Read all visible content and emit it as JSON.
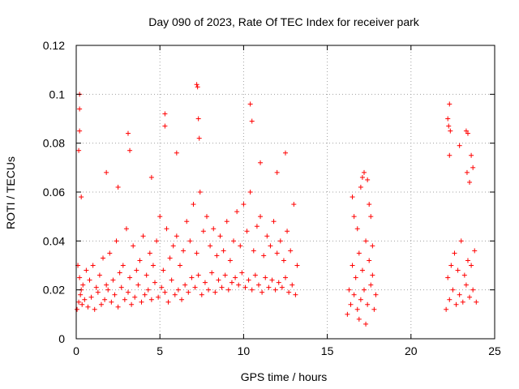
{
  "chart_data": {
    "type": "scatter",
    "title": "Day 090 of 2023, Rate Of TEC Index for receiver park",
    "xlabel": "GPS time / hours",
    "ylabel": "ROTI / TECUs",
    "xlim": [
      0,
      25
    ],
    "ylim": [
      0,
      0.12
    ],
    "xticks": [
      0,
      5,
      10,
      15,
      20,
      25
    ],
    "xtick_labels": [
      "0",
      "5",
      "10",
      "15",
      "20",
      "25"
    ],
    "yticks": [
      0,
      0.02,
      0.04,
      0.06,
      0.08,
      0.1,
      0.12
    ],
    "ytick_labels": [
      "0",
      "0.02",
      "0.04",
      "0.06",
      "0.08",
      "0.1",
      "0.12"
    ],
    "grid": true,
    "marker": "plus",
    "color": "#ff0000",
    "series": [
      {
        "x": [
          0.05,
          0.1,
          0.15,
          0.2,
          0.25,
          0.3,
          0.35,
          0.4,
          0.5,
          0.6,
          0.7,
          0.8,
          0.9,
          1.0,
          1.1,
          1.2,
          1.3,
          1.4,
          1.5,
          1.6,
          1.7,
          1.8,
          1.9,
          2.0,
          2.1,
          2.2,
          2.3,
          2.4,
          2.5,
          2.6,
          2.7,
          2.8,
          2.9,
          3.0,
          3.1,
          3.2,
          3.3,
          3.4,
          3.5,
          3.6,
          3.7,
          3.8,
          3.9,
          4.0,
          4.1,
          4.2,
          4.3,
          4.4,
          4.5,
          4.6,
          4.7,
          4.8,
          4.9,
          5.0,
          5.1,
          5.2,
          5.3,
          5.4,
          5.5,
          5.6,
          5.7,
          5.8,
          5.9,
          6.0,
          6.1,
          6.2,
          6.3,
          6.4,
          6.5,
          6.6,
          6.7,
          6.8,
          6.9,
          7.0,
          7.1,
          7.2,
          7.3,
          7.4,
          7.5,
          7.6,
          7.7,
          7.8,
          7.9,
          8.0,
          8.1,
          8.2,
          8.3,
          8.4,
          8.5,
          8.6,
          8.7,
          8.8,
          8.9,
          9.0,
          9.1,
          9.2,
          9.3,
          9.4,
          9.5,
          9.6,
          9.7,
          9.8,
          9.9,
          10.0,
          10.1,
          10.2,
          10.3,
          10.4,
          10.5,
          10.6,
          10.7,
          10.8,
          10.9,
          11.0,
          11.1,
          11.2,
          11.3,
          11.4,
          11.5,
          11.6,
          11.7,
          11.8,
          11.9,
          12.0,
          12.1,
          12.2,
          12.3,
          12.4,
          12.5,
          12.6,
          12.7,
          12.8,
          12.9,
          13.0,
          13.1,
          13.2,
          0.2,
          0.2,
          0.2,
          0.15,
          0.3,
          3.1,
          3.2,
          5.3,
          5.3,
          6.0,
          7.2,
          7.25,
          7.3,
          7.35,
          10.4,
          10.5,
          12.5,
          12.0,
          11.0,
          1.8,
          2.5,
          4.5
        ],
        "y": [
          0.012,
          0.03,
          0.015,
          0.025,
          0.018,
          0.02,
          0.014,
          0.022,
          0.016,
          0.028,
          0.013,
          0.024,
          0.017,
          0.03,
          0.012,
          0.021,
          0.019,
          0.026,
          0.014,
          0.033,
          0.016,
          0.022,
          0.02,
          0.035,
          0.015,
          0.024,
          0.018,
          0.04,
          0.013,
          0.027,
          0.021,
          0.03,
          0.016,
          0.045,
          0.019,
          0.025,
          0.014,
          0.038,
          0.017,
          0.028,
          0.022,
          0.032,
          0.015,
          0.042,
          0.018,
          0.026,
          0.02,
          0.035,
          0.016,
          0.03,
          0.023,
          0.04,
          0.017,
          0.05,
          0.021,
          0.028,
          0.019,
          0.045,
          0.015,
          0.033,
          0.024,
          0.038,
          0.018,
          0.042,
          0.02,
          0.03,
          0.016,
          0.036,
          0.022,
          0.048,
          0.019,
          0.04,
          0.025,
          0.055,
          0.021,
          0.035,
          0.026,
          0.06,
          0.018,
          0.044,
          0.023,
          0.05,
          0.02,
          0.038,
          0.027,
          0.045,
          0.019,
          0.034,
          0.024,
          0.042,
          0.021,
          0.036,
          0.026,
          0.048,
          0.02,
          0.032,
          0.023,
          0.04,
          0.025,
          0.052,
          0.022,
          0.038,
          0.027,
          0.055,
          0.021,
          0.044,
          0.024,
          0.06,
          0.02,
          0.036,
          0.026,
          0.046,
          0.022,
          0.05,
          0.019,
          0.034,
          0.025,
          0.042,
          0.021,
          0.038,
          0.024,
          0.048,
          0.02,
          0.035,
          0.023,
          0.04,
          0.021,
          0.032,
          0.025,
          0.044,
          0.019,
          0.036,
          0.022,
          0.055,
          0.018,
          0.03,
          0.1,
          0.094,
          0.085,
          0.077,
          0.058,
          0.084,
          0.077,
          0.092,
          0.087,
          0.076,
          0.104,
          0.103,
          0.09,
          0.082,
          0.096,
          0.089,
          0.076,
          0.068,
          0.072,
          0.068,
          0.062,
          0.066
        ]
      },
      {
        "x": [
          16.2,
          16.3,
          16.4,
          16.5,
          16.6,
          16.7,
          16.8,
          16.9,
          17.0,
          17.1,
          17.2,
          17.3,
          17.4,
          17.5,
          17.6,
          17.7,
          17.8,
          17.9,
          16.5,
          16.6,
          16.8,
          17.0,
          17.1,
          17.2,
          17.4,
          17.5,
          17.6,
          16.9,
          17.3,
          17.7
        ],
        "y": [
          0.01,
          0.02,
          0.014,
          0.03,
          0.018,
          0.025,
          0.012,
          0.035,
          0.016,
          0.028,
          0.02,
          0.04,
          0.014,
          0.032,
          0.022,
          0.026,
          0.012,
          0.018,
          0.058,
          0.05,
          0.045,
          0.062,
          0.066,
          0.068,
          0.065,
          0.055,
          0.05,
          0.008,
          0.006,
          0.038
        ]
      },
      {
        "x": [
          22.1,
          22.2,
          22.3,
          22.4,
          22.5,
          22.6,
          22.7,
          22.8,
          22.9,
          23.0,
          23.1,
          23.2,
          23.3,
          23.4,
          23.5,
          23.6,
          23.7,
          23.8,
          23.9,
          22.2,
          22.3,
          22.25,
          22.35,
          22.3,
          22.9,
          23.3,
          23.4,
          23.35,
          23.6,
          23.7,
          23.5
        ],
        "y": [
          0.012,
          0.025,
          0.016,
          0.03,
          0.02,
          0.035,
          0.014,
          0.028,
          0.018,
          0.04,
          0.015,
          0.026,
          0.022,
          0.032,
          0.017,
          0.03,
          0.02,
          0.036,
          0.015,
          0.09,
          0.096,
          0.087,
          0.085,
          0.075,
          0.079,
          0.085,
          0.084,
          0.068,
          0.075,
          0.07,
          0.064
        ]
      }
    ]
  }
}
